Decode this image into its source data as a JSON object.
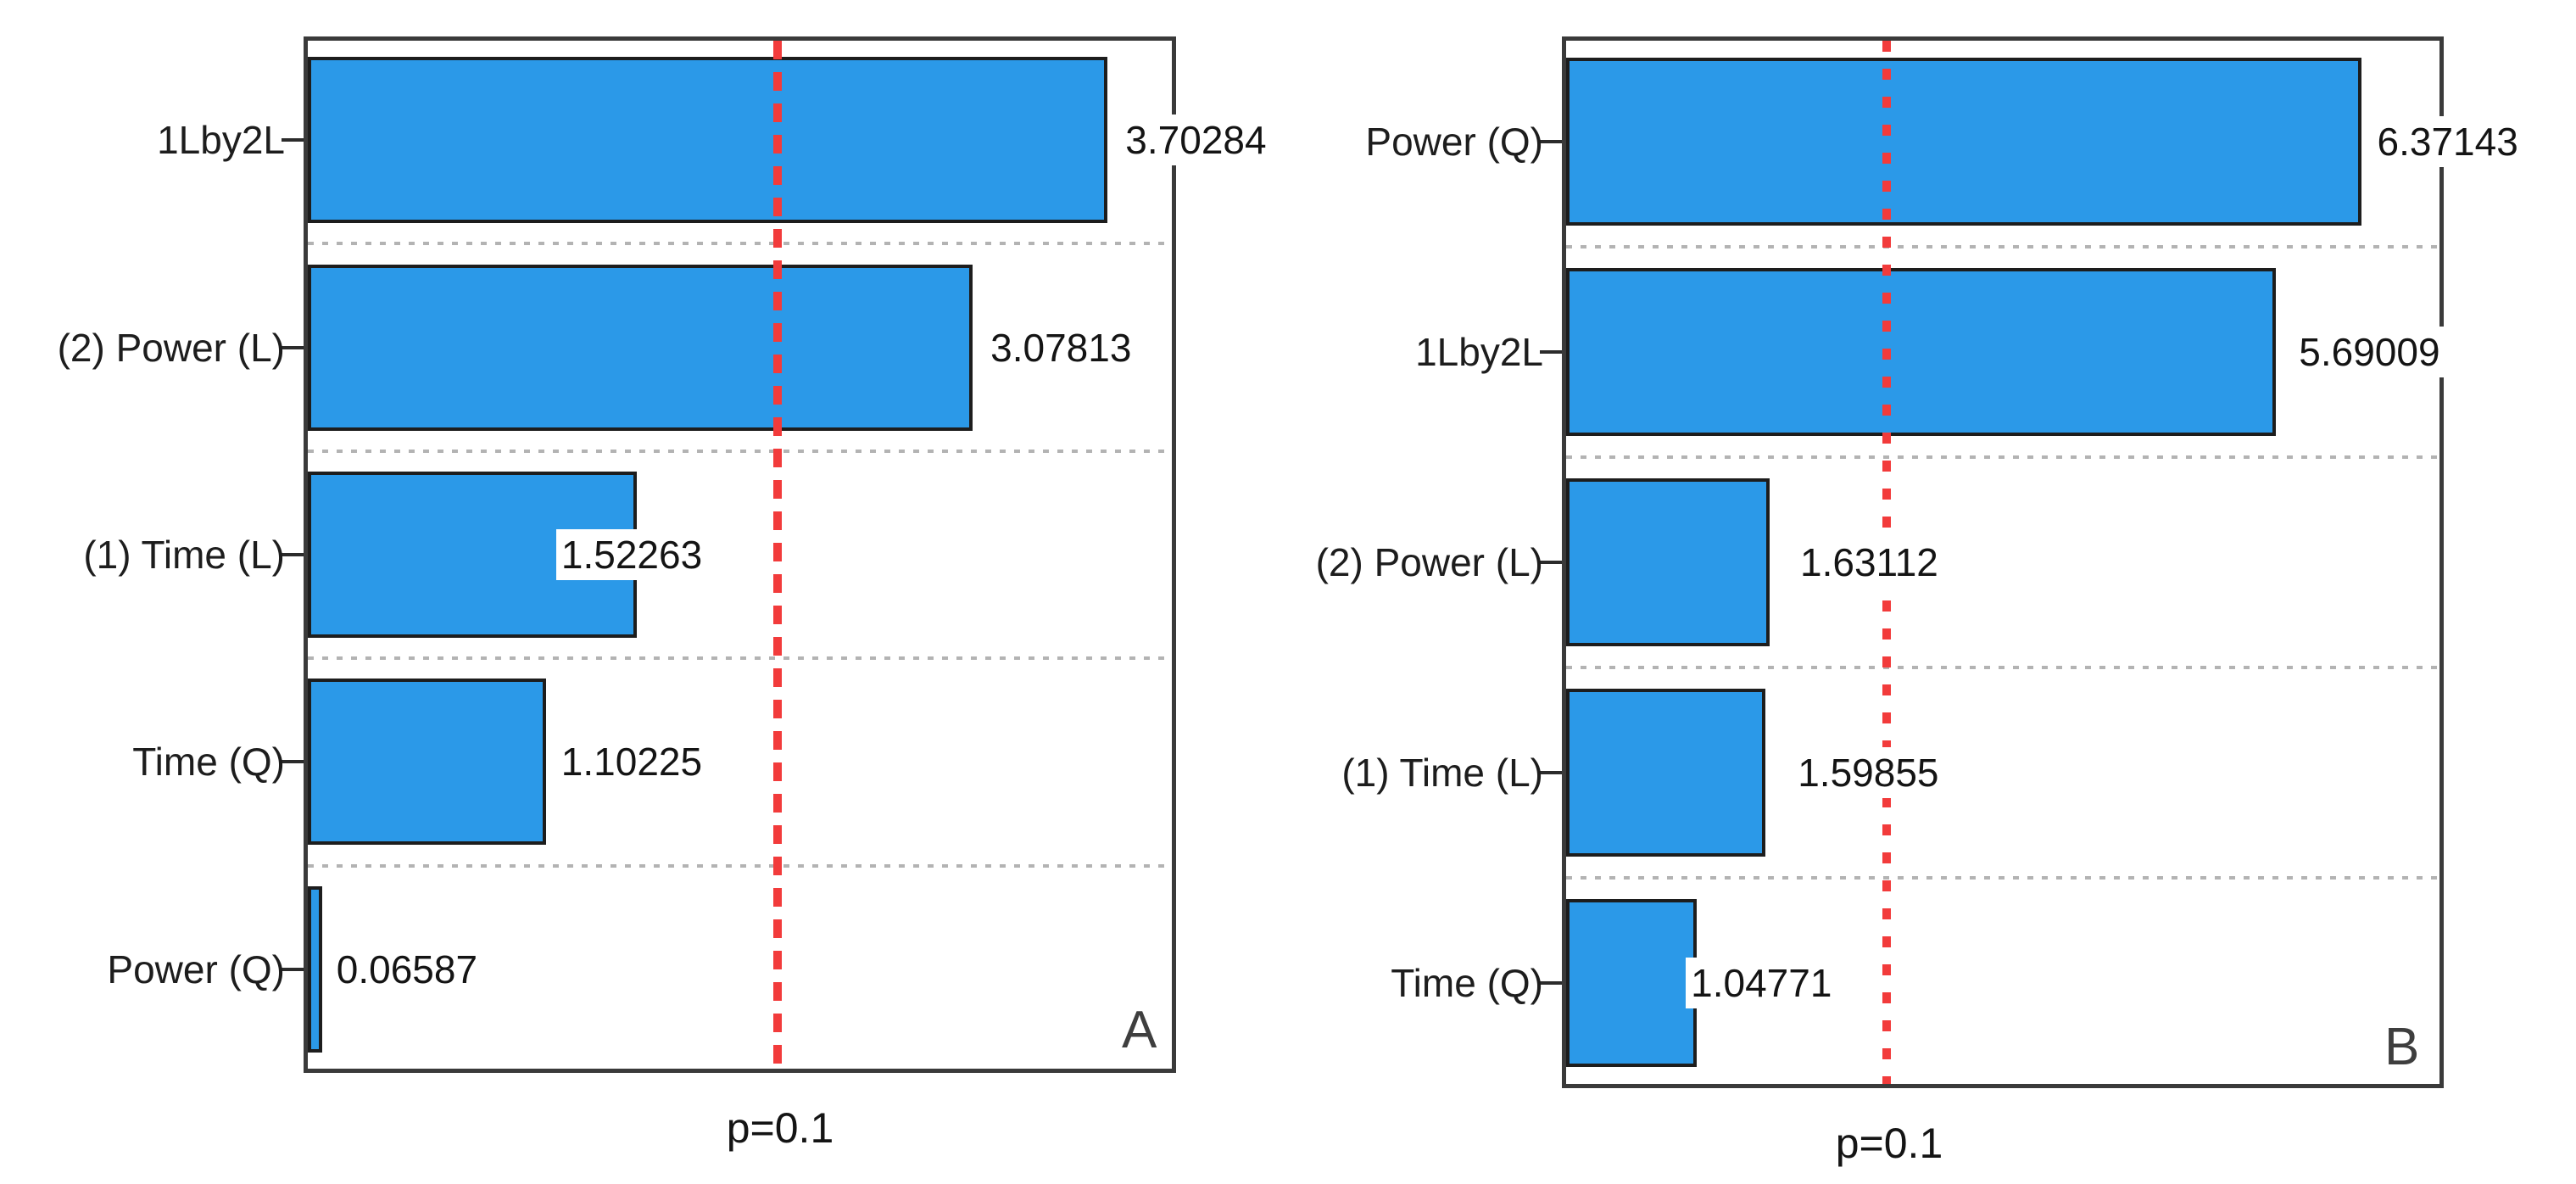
{
  "figure": {
    "background": "#ffffff",
    "bar_fill_color": "#2b99e8",
    "bar_border_color": "#1d1d1d",
    "frame_color": "#3a3a3a",
    "grid_color": "#b3b3b3",
    "significance_line_color": "#f23b3b",
    "text_color": "#141414"
  },
  "chart_data": [
    {
      "type": "bar",
      "orientation": "horizontal",
      "panel_label": "A",
      "title": "",
      "xlabel": "",
      "ylabel": "",
      "grid": "dotted row separators",
      "categories": [
        "1Lby2L",
        "(2) Power (L)",
        "(1) Time (L)",
        "Time (Q)",
        "Power (Q)"
      ],
      "values": [
        3.70284,
        3.07813,
        1.52263,
        1.10225,
        0.06587
      ],
      "value_labels": [
        "3.70284",
        "3.07813",
        "1.52263",
        "1.10225",
        "0.06587"
      ],
      "xlim": [
        0,
        4
      ],
      "significance_line": {
        "label": "p=0.1",
        "value_estimate": 2.173,
        "style": "dashed"
      }
    },
    {
      "type": "bar",
      "orientation": "horizontal",
      "panel_label": "B",
      "title": "",
      "xlabel": "",
      "ylabel": "",
      "grid": "dotted row separators",
      "categories": [
        "Power (Q)",
        "1Lby2L",
        "(2) Power (L)",
        "(1) Time (L)",
        "Time (Q)"
      ],
      "values": [
        6.37143,
        5.69009,
        1.63112,
        1.59855,
        1.04771
      ],
      "value_labels": [
        "6.37143",
        "5.69009",
        "1.63112",
        "1.59855",
        "1.04771"
      ],
      "xlim": [
        0,
        7
      ],
      "significance_line": {
        "label": "p=0.1",
        "value_estimate": 2.578,
        "style": "dotted-dash"
      }
    }
  ]
}
